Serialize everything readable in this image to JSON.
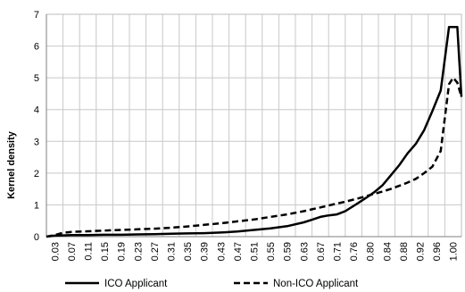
{
  "chart_data": {
    "type": "line",
    "ylabel": "Kernel density",
    "xlabel": "",
    "ylim": [
      0,
      7
    ],
    "y_ticks": [
      "0",
      "1",
      "2",
      "3",
      "4",
      "5",
      "6",
      "7"
    ],
    "x_tick_labels": [
      "0.03",
      "0.07",
      "0.11",
      "0.15",
      "0.19",
      "0.23",
      "0.27",
      "0.31",
      "0.35",
      "0.39",
      "0.43",
      "0.47",
      "0.51",
      "0.55",
      "0.59",
      "0.63",
      "0.67",
      "0.71",
      "0.76",
      "0.80",
      "0.84",
      "0.88",
      "0.92",
      "0.96",
      "1.00"
    ],
    "grid": true,
    "legend_position": "bottom",
    "x": [
      0.01,
      0.03,
      0.05,
      0.07,
      0.11,
      0.15,
      0.19,
      0.23,
      0.27,
      0.31,
      0.35,
      0.39,
      0.43,
      0.47,
      0.51,
      0.55,
      0.59,
      0.63,
      0.65,
      0.67,
      0.69,
      0.71,
      0.73,
      0.76,
      0.78,
      0.8,
      0.82,
      0.84,
      0.86,
      0.88,
      0.9,
      0.92,
      0.94,
      0.96,
      0.98,
      0.99,
      1.0,
      1.01
    ],
    "series": [
      {
        "name": "ICO Applicant",
        "style": "solid",
        "values": [
          0.0,
          0.03,
          0.04,
          0.05,
          0.05,
          0.06,
          0.06,
          0.07,
          0.08,
          0.09,
          0.1,
          0.11,
          0.13,
          0.16,
          0.21,
          0.26,
          0.33,
          0.45,
          0.53,
          0.62,
          0.67,
          0.7,
          0.8,
          1.05,
          1.22,
          1.4,
          1.62,
          1.93,
          2.25,
          2.62,
          2.92,
          3.35,
          3.95,
          4.6,
          6.6,
          6.6,
          6.6,
          4.4
        ]
      },
      {
        "name": "Non-ICO Applicant",
        "style": "dashed",
        "values": [
          0.0,
          0.05,
          0.12,
          0.15,
          0.17,
          0.19,
          0.21,
          0.23,
          0.25,
          0.28,
          0.32,
          0.37,
          0.42,
          0.48,
          0.54,
          0.62,
          0.7,
          0.8,
          0.86,
          0.92,
          0.98,
          1.04,
          1.1,
          1.2,
          1.27,
          1.35,
          1.42,
          1.5,
          1.6,
          1.7,
          1.82,
          2.0,
          2.2,
          2.7,
          4.8,
          5.0,
          4.85,
          4.4
        ]
      }
    ]
  }
}
